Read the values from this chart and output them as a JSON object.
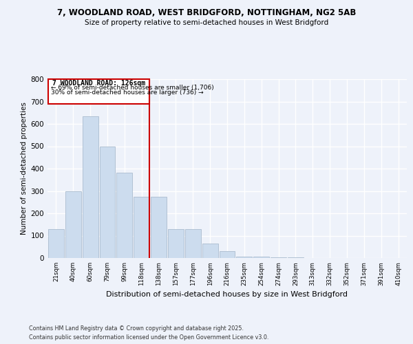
{
  "title1": "7, WOODLAND ROAD, WEST BRIDGFORD, NOTTINGHAM, NG2 5AB",
  "title2": "Size of property relative to semi-detached houses in West Bridgford",
  "xlabel": "Distribution of semi-detached houses by size in West Bridgford",
  "ylabel": "Number of semi-detached properties",
  "bin_labels": [
    "21sqm",
    "40sqm",
    "60sqm",
    "79sqm",
    "99sqm",
    "118sqm",
    "138sqm",
    "157sqm",
    "177sqm",
    "196sqm",
    "216sqm",
    "235sqm",
    "254sqm",
    "274sqm",
    "293sqm",
    "313sqm",
    "332sqm",
    "352sqm",
    "371sqm",
    "391sqm",
    "410sqm"
  ],
  "bar_values": [
    128,
    300,
    635,
    500,
    383,
    275,
    275,
    130,
    130,
    65,
    30,
    5,
    5,
    3,
    2,
    1,
    1,
    1,
    0,
    0,
    0
  ],
  "annotation_title": "7 WOODLAND ROAD: 126sqm",
  "annotation_line1": "← 69% of semi-detached houses are smaller (1,706)",
  "annotation_line2": "30% of semi-detached houses are larger (736) →",
  "bar_color": "#ccdcee",
  "bar_edge_color": "#aabcce",
  "line_color": "#cc0000",
  "box_edge_color": "#cc0000",
  "background_color": "#eef2fa",
  "grid_color": "#ffffff",
  "ylim": [
    0,
    800
  ],
  "yticks": [
    0,
    100,
    200,
    300,
    400,
    500,
    600,
    700,
    800
  ],
  "footer1": "Contains HM Land Registry data © Crown copyright and database right 2025.",
  "footer2": "Contains public sector information licensed under the Open Government Licence v3.0."
}
